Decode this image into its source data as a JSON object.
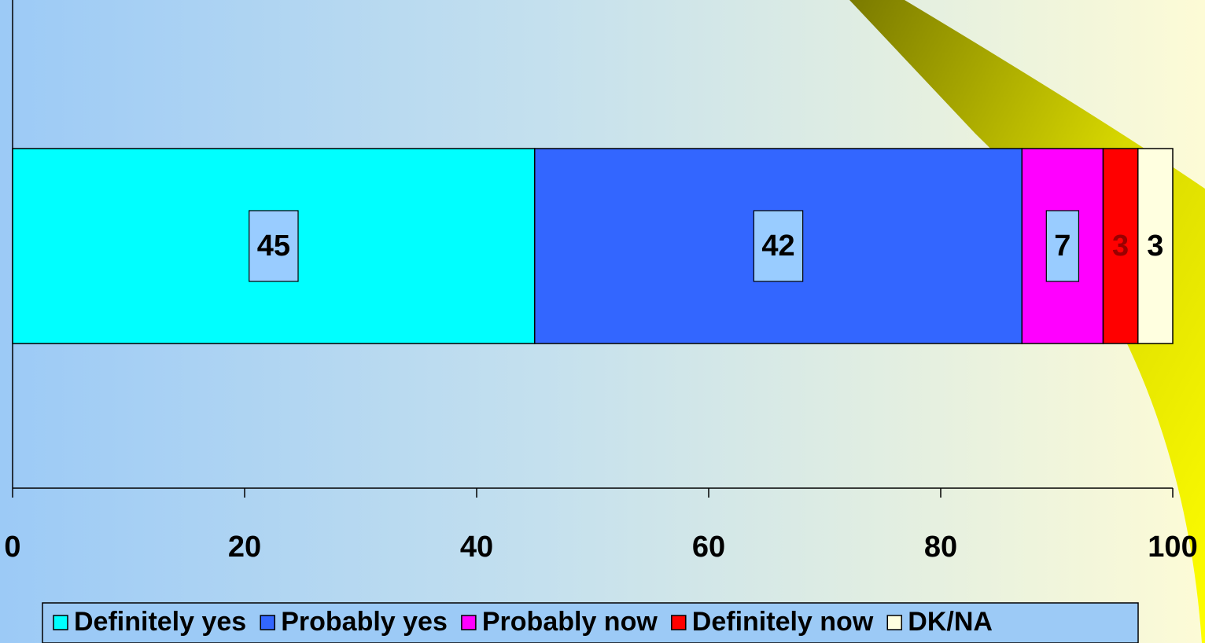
{
  "chart_data": {
    "type": "bar",
    "orientation": "horizontal",
    "stacked": true,
    "categories": [
      null
    ],
    "series": [
      {
        "name": "Definitely yes",
        "color": "#00ffff",
        "values": [
          45
        ]
      },
      {
        "name": "Probably yes",
        "color": "#3366ff",
        "values": [
          42
        ]
      },
      {
        "name": "Probably now",
        "color": "#ff00ff",
        "values": [
          7
        ]
      },
      {
        "name": "Definitely now",
        "color": "#ff0000",
        "values": [
          3
        ]
      },
      {
        "name": "DK/NA",
        "color": "#ffffe0",
        "values": [
          3
        ]
      }
    ],
    "xlim": [
      0,
      100
    ],
    "xticks": [
      0,
      20,
      40,
      60,
      80,
      100
    ],
    "grid": false,
    "legend": "bottom"
  }
}
